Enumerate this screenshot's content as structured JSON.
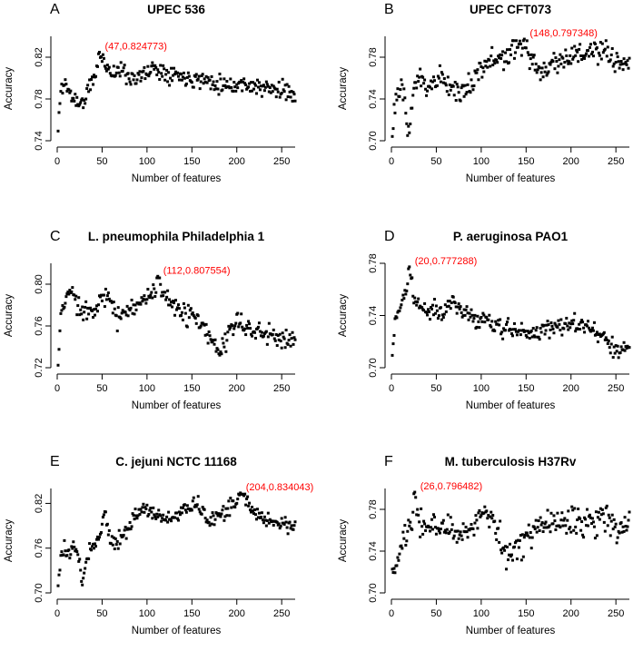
{
  "colors": {
    "point": "#000000",
    "axis": "#000000",
    "annotation": "#ff0000",
    "background": "#ffffff"
  },
  "chart_data": [
    {
      "panel_label": "A",
      "title": "UPEC 536",
      "type": "scatter",
      "xlabel": "Number of features",
      "ylabel": "Accuracy",
      "xlim": [
        0,
        265
      ],
      "ylim": [
        0.74,
        0.84
      ],
      "xticks": [
        "0",
        "50",
        "100",
        "150",
        "200",
        "250"
      ],
      "yticks": [
        "0.74",
        "0.78",
        "0.82"
      ],
      "annotation": {
        "label": "(47,0.824773)",
        "x": 47,
        "y": 0.824773
      },
      "series_profile": [
        [
          1,
          0.748
        ],
        [
          3,
          0.778
        ],
        [
          5,
          0.792
        ],
        [
          8,
          0.795
        ],
        [
          12,
          0.79
        ],
        [
          15,
          0.783
        ],
        [
          18,
          0.782
        ],
        [
          22,
          0.778
        ],
        [
          26,
          0.775
        ],
        [
          30,
          0.778
        ],
        [
          35,
          0.79
        ],
        [
          40,
          0.798
        ],
        [
          44,
          0.808
        ],
        [
          47,
          0.8248
        ],
        [
          52,
          0.815
        ],
        [
          56,
          0.812
        ],
        [
          60,
          0.805
        ],
        [
          65,
          0.806
        ],
        [
          70,
          0.808
        ],
        [
          75,
          0.805
        ],
        [
          80,
          0.802
        ],
        [
          85,
          0.8
        ],
        [
          90,
          0.802
        ],
        [
          95,
          0.802
        ],
        [
          100,
          0.805
        ],
        [
          105,
          0.809
        ],
        [
          110,
          0.811
        ],
        [
          115,
          0.806
        ],
        [
          120,
          0.807
        ],
        [
          125,
          0.805
        ],
        [
          130,
          0.805
        ],
        [
          135,
          0.803
        ],
        [
          140,
          0.801
        ],
        [
          145,
          0.802
        ],
        [
          150,
          0.8
        ],
        [
          160,
          0.799
        ],
        [
          170,
          0.797
        ],
        [
          180,
          0.795
        ],
        [
          190,
          0.794
        ],
        [
          200,
          0.793
        ],
        [
          210,
          0.795
        ],
        [
          220,
          0.792
        ],
        [
          230,
          0.79
        ],
        [
          240,
          0.789
        ],
        [
          250,
          0.788
        ],
        [
          265,
          0.786
        ]
      ],
      "noise": 0.006,
      "seed": 11
    },
    {
      "panel_label": "B",
      "title": "UPEC CFT073",
      "type": "scatter",
      "xlabel": "Number of features",
      "ylabel": "Accuracy",
      "xlim": [
        0,
        265
      ],
      "ylim": [
        0.7,
        0.8
      ],
      "xticks": [
        "0",
        "50",
        "100",
        "150",
        "200",
        "250"
      ],
      "yticks": [
        "0.70",
        "0.74",
        "0.78"
      ],
      "annotation": {
        "label": "(148,0.797348)",
        "x": 148,
        "y": 0.797348
      },
      "series_profile": [
        [
          1,
          0.712
        ],
        [
          5,
          0.74
        ],
        [
          10,
          0.748
        ],
        [
          15,
          0.738
        ],
        [
          18,
          0.703
        ],
        [
          22,
          0.73
        ],
        [
          26,
          0.755
        ],
        [
          30,
          0.76
        ],
        [
          35,
          0.755
        ],
        [
          40,
          0.752
        ],
        [
          45,
          0.758
        ],
        [
          50,
          0.756
        ],
        [
          55,
          0.762
        ],
        [
          60,
          0.757
        ],
        [
          65,
          0.752
        ],
        [
          70,
          0.75
        ],
        [
          75,
          0.748
        ],
        [
          80,
          0.745
        ],
        [
          85,
          0.752
        ],
        [
          90,
          0.755
        ],
        [
          95,
          0.768
        ],
        [
          100,
          0.77
        ],
        [
          105,
          0.775
        ],
        [
          110,
          0.777
        ],
        [
          115,
          0.776
        ],
        [
          120,
          0.778
        ],
        [
          125,
          0.78
        ],
        [
          130,
          0.78
        ],
        [
          135,
          0.785
        ],
        [
          140,
          0.788
        ],
        [
          145,
          0.79
        ],
        [
          148,
          0.7973
        ],
        [
          152,
          0.787
        ],
        [
          158,
          0.772
        ],
        [
          165,
          0.768
        ],
        [
          170,
          0.77
        ],
        [
          175,
          0.77
        ],
        [
          180,
          0.775
        ],
        [
          190,
          0.778
        ],
        [
          200,
          0.781
        ],
        [
          210,
          0.783
        ],
        [
          220,
          0.785
        ],
        [
          230,
          0.784
        ],
        [
          240,
          0.782
        ],
        [
          250,
          0.776
        ],
        [
          265,
          0.775
        ]
      ],
      "noise": 0.008,
      "seed": 23
    },
    {
      "panel_label": "C",
      "title": "L. pneumophila Philadelphia 1",
      "type": "scatter",
      "xlabel": "Number of features",
      "ylabel": "Accuracy",
      "xlim": [
        0,
        265
      ],
      "ylim": [
        0.72,
        0.82
      ],
      "xticks": [
        "0",
        "50",
        "100",
        "150",
        "200",
        "250"
      ],
      "yticks": [
        "0.72",
        "0.76",
        "0.80"
      ],
      "annotation": {
        "label": "(112,0.807554)",
        "x": 112,
        "y": 0.807554
      },
      "series_profile": [
        [
          1,
          0.722
        ],
        [
          4,
          0.768
        ],
        [
          8,
          0.78
        ],
        [
          12,
          0.792
        ],
        [
          16,
          0.795
        ],
        [
          20,
          0.785
        ],
        [
          25,
          0.775
        ],
        [
          30,
          0.778
        ],
        [
          35,
          0.775
        ],
        [
          40,
          0.778
        ],
        [
          45,
          0.782
        ],
        [
          50,
          0.785
        ],
        [
          55,
          0.788
        ],
        [
          60,
          0.782
        ],
        [
          65,
          0.77
        ],
        [
          70,
          0.765
        ],
        [
          75,
          0.775
        ],
        [
          80,
          0.778
        ],
        [
          85,
          0.78
        ],
        [
          90,
          0.782
        ],
        [
          95,
          0.786
        ],
        [
          100,
          0.788
        ],
        [
          105,
          0.79
        ],
        [
          110,
          0.793
        ],
        [
          112,
          0.8076
        ],
        [
          116,
          0.79
        ],
        [
          120,
          0.786
        ],
        [
          125,
          0.784
        ],
        [
          130,
          0.78
        ],
        [
          135,
          0.775
        ],
        [
          140,
          0.77
        ],
        [
          145,
          0.772
        ],
        [
          150,
          0.77
        ],
        [
          155,
          0.765
        ],
        [
          160,
          0.76
        ],
        [
          165,
          0.755
        ],
        [
          170,
          0.748
        ],
        [
          175,
          0.74
        ],
        [
          180,
          0.735
        ],
        [
          185,
          0.742
        ],
        [
          190,
          0.752
        ],
        [
          195,
          0.758
        ],
        [
          200,
          0.762
        ],
        [
          210,
          0.76
        ],
        [
          220,
          0.756
        ],
        [
          230,
          0.752
        ],
        [
          240,
          0.75
        ],
        [
          250,
          0.748
        ],
        [
          265,
          0.747
        ]
      ],
      "noise": 0.007,
      "seed": 37
    },
    {
      "panel_label": "D",
      "title": "P. aeruginosa PAO1",
      "type": "scatter",
      "xlabel": "Number of features",
      "ylabel": "Accuracy",
      "xlim": [
        0,
        265
      ],
      "ylim": [
        0.7,
        0.78
      ],
      "xticks": [
        "0",
        "50",
        "100",
        "150",
        "200",
        "250"
      ],
      "yticks": [
        "0.70",
        "0.74",
        "0.78"
      ],
      "annotation": {
        "label": "(20,0.777288)",
        "x": 20,
        "y": 0.777288
      },
      "series_profile": [
        [
          1,
          0.706
        ],
        [
          4,
          0.735
        ],
        [
          8,
          0.746
        ],
        [
          12,
          0.752
        ],
        [
          16,
          0.76
        ],
        [
          20,
          0.7773
        ],
        [
          25,
          0.752
        ],
        [
          30,
          0.748
        ],
        [
          35,
          0.746
        ],
        [
          40,
          0.742
        ],
        [
          45,
          0.743
        ],
        [
          50,
          0.745
        ],
        [
          55,
          0.742
        ],
        [
          60,
          0.745
        ],
        [
          65,
          0.748
        ],
        [
          70,
          0.75
        ],
        [
          75,
          0.746
        ],
        [
          80,
          0.742
        ],
        [
          85,
          0.74
        ],
        [
          90,
          0.74
        ],
        [
          95,
          0.738
        ],
        [
          100,
          0.736
        ],
        [
          105,
          0.738
        ],
        [
          110,
          0.735
        ],
        [
          115,
          0.732
        ],
        [
          120,
          0.73
        ],
        [
          125,
          0.728
        ],
        [
          130,
          0.73
        ],
        [
          140,
          0.727
        ],
        [
          150,
          0.726
        ],
        [
          160,
          0.727
        ],
        [
          170,
          0.729
        ],
        [
          180,
          0.731
        ],
        [
          190,
          0.733
        ],
        [
          200,
          0.734
        ],
        [
          210,
          0.732
        ],
        [
          220,
          0.731
        ],
        [
          230,
          0.726
        ],
        [
          240,
          0.72
        ],
        [
          245,
          0.715
        ],
        [
          250,
          0.712
        ],
        [
          258,
          0.714
        ],
        [
          265,
          0.716
        ]
      ],
      "noise": 0.005,
      "seed": 41
    },
    {
      "panel_label": "E",
      "title": "C. jejuni NCTC 11168",
      "type": "scatter",
      "xlabel": "Number of features",
      "ylabel": "Accuracy",
      "xlim": [
        0,
        265
      ],
      "ylim": [
        0.7,
        0.84
      ],
      "xticks": [
        "0",
        "50",
        "100",
        "150",
        "200",
        "250"
      ],
      "yticks": [
        "0.70",
        "0.76",
        "0.82"
      ],
      "annotation": {
        "label": "(204,0.834043)",
        "x": 204,
        "y": 0.834043
      },
      "series_profile": [
        [
          1,
          0.715
        ],
        [
          4,
          0.74
        ],
        [
          8,
          0.76
        ],
        [
          12,
          0.752
        ],
        [
          16,
          0.755
        ],
        [
          20,
          0.76
        ],
        [
          25,
          0.748
        ],
        [
          28,
          0.705
        ],
        [
          32,
          0.745
        ],
        [
          36,
          0.76
        ],
        [
          40,
          0.765
        ],
        [
          45,
          0.772
        ],
        [
          50,
          0.79
        ],
        [
          53,
          0.81
        ],
        [
          56,
          0.788
        ],
        [
          60,
          0.77
        ],
        [
          65,
          0.768
        ],
        [
          70,
          0.775
        ],
        [
          75,
          0.78
        ],
        [
          80,
          0.79
        ],
        [
          85,
          0.8
        ],
        [
          90,
          0.808
        ],
        [
          95,
          0.812
        ],
        [
          100,
          0.81
        ],
        [
          105,
          0.808
        ],
        [
          110,
          0.805
        ],
        [
          115,
          0.8
        ],
        [
          120,
          0.798
        ],
        [
          125,
          0.8
        ],
        [
          130,
          0.802
        ],
        [
          135,
          0.805
        ],
        [
          140,
          0.81
        ],
        [
          145,
          0.815
        ],
        [
          150,
          0.818
        ],
        [
          155,
          0.822
        ],
        [
          160,
          0.81
        ],
        [
          165,
          0.8
        ],
        [
          170,
          0.798
        ],
        [
          175,
          0.8
        ],
        [
          180,
          0.805
        ],
        [
          185,
          0.808
        ],
        [
          190,
          0.812
        ],
        [
          195,
          0.818
        ],
        [
          200,
          0.825
        ],
        [
          204,
          0.834
        ],
        [
          210,
          0.825
        ],
        [
          215,
          0.815
        ],
        [
          220,
          0.808
        ],
        [
          230,
          0.8
        ],
        [
          240,
          0.798
        ],
        [
          250,
          0.792
        ],
        [
          265,
          0.788
        ]
      ],
      "noise": 0.007,
      "seed": 53
    },
    {
      "panel_label": "F",
      "title": "M. tuberculosis H37Rv",
      "type": "scatter",
      "xlabel": "Number of features",
      "ylabel": "Accuracy",
      "xlim": [
        0,
        265
      ],
      "ylim": [
        0.7,
        0.8
      ],
      "xticks": [
        "0",
        "50",
        "100",
        "150",
        "200",
        "250"
      ],
      "yticks": [
        "0.70",
        "0.74",
        "0.78"
      ],
      "annotation": {
        "label": "(26,0.796482)",
        "x": 26,
        "y": 0.796482
      },
      "series_profile": [
        [
          1,
          0.716
        ],
        [
          4,
          0.725
        ],
        [
          8,
          0.738
        ],
        [
          12,
          0.746
        ],
        [
          16,
          0.752
        ],
        [
          20,
          0.76
        ],
        [
          24,
          0.775
        ],
        [
          26,
          0.7965
        ],
        [
          30,
          0.772
        ],
        [
          35,
          0.765
        ],
        [
          40,
          0.762
        ],
        [
          45,
          0.77
        ],
        [
          50,
          0.765
        ],
        [
          55,
          0.764
        ],
        [
          60,
          0.762
        ],
        [
          65,
          0.758
        ],
        [
          70,
          0.758
        ],
        [
          75,
          0.76
        ],
        [
          80,
          0.76
        ],
        [
          85,
          0.758
        ],
        [
          90,
          0.762
        ],
        [
          95,
          0.765
        ],
        [
          100,
          0.77
        ],
        [
          105,
          0.772
        ],
        [
          110,
          0.77
        ],
        [
          115,
          0.765
        ],
        [
          120,
          0.755
        ],
        [
          125,
          0.742
        ],
        [
          130,
          0.735
        ],
        [
          135,
          0.738
        ],
        [
          140,
          0.742
        ],
        [
          145,
          0.748
        ],
        [
          150,
          0.752
        ],
        [
          155,
          0.758
        ],
        [
          160,
          0.762
        ],
        [
          170,
          0.766
        ],
        [
          180,
          0.768
        ],
        [
          190,
          0.77
        ],
        [
          200,
          0.768
        ],
        [
          210,
          0.77
        ],
        [
          220,
          0.768
        ],
        [
          230,
          0.77
        ],
        [
          240,
          0.775
        ],
        [
          245,
          0.772
        ],
        [
          250,
          0.765
        ],
        [
          258,
          0.762
        ],
        [
          265,
          0.765
        ]
      ],
      "noise": 0.01,
      "seed": 67
    }
  ]
}
